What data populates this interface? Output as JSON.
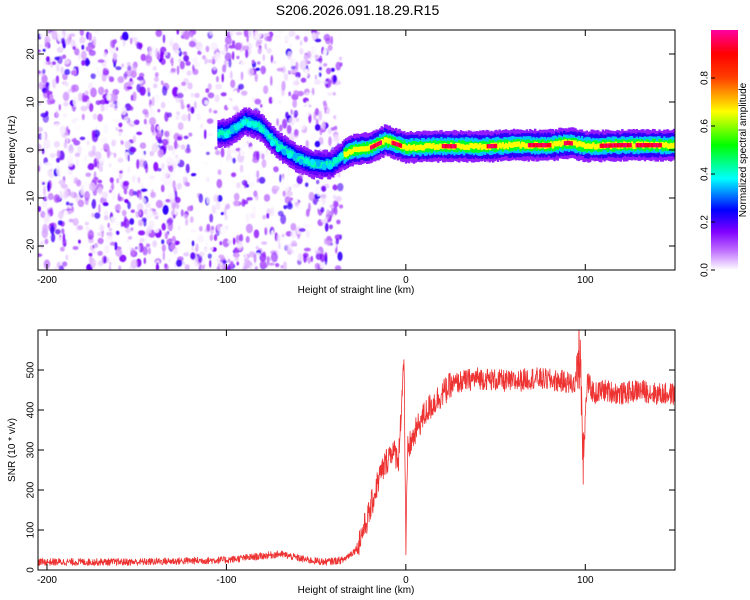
{
  "title": "S206.2026.091.18.29.R15",
  "chart_data": [
    {
      "type": "heatmap",
      "name": "spectrogram",
      "xlabel": "Height of straight line (km)",
      "ylabel": "Frequency (Hz)",
      "xlim": [
        -205,
        150
      ],
      "ylim": [
        -25,
        25
      ],
      "xticks": [
        -200,
        -100,
        0,
        100
      ],
      "yticks": [
        -20,
        -10,
        0,
        10,
        20
      ],
      "colorbar": {
        "label": "Normalized spectral amplitude",
        "range": [
          0,
          1
        ],
        "ticks": [
          "0.0",
          "0.2",
          "0.4",
          "0.6",
          "0.8"
        ],
        "colors": [
          "#ffffff",
          "#a400ff",
          "#0000ff",
          "#00ffff",
          "#00ff00",
          "#ffff00",
          "#ff0000",
          "#ff00a0"
        ]
      },
      "ridge": {
        "description": "peak frequency track",
        "x": [
          -100,
          -90,
          -82,
          -72,
          -62,
          -52,
          -42,
          -35,
          -30,
          -20,
          -12,
          -8,
          0,
          20,
          40,
          60,
          80,
          90,
          100,
          120,
          150
        ],
        "y": [
          3.5,
          6,
          5,
          1,
          -1.5,
          -3,
          -3,
          -1,
          0,
          0.5,
          2,
          1.5,
          0.5,
          0.8,
          0.7,
          1,
          1,
          1.5,
          0.8,
          1,
          1
        ]
      }
    },
    {
      "type": "line",
      "name": "snr",
      "xlabel": "Height of straight line (km)",
      "ylabel": "SNR (10 * v/v)",
      "xlim": [
        -205,
        150
      ],
      "ylim": [
        0,
        600
      ],
      "xticks": [
        -200,
        -100,
        0,
        100
      ],
      "yticks": [
        0,
        100,
        200,
        300,
        400,
        500
      ],
      "color": "#ee3333",
      "series": [
        {
          "name": "SNR",
          "x": [
            -205,
            -150,
            -100,
            -80,
            -70,
            -55,
            -45,
            -35,
            -28,
            -22,
            -18,
            -15,
            -12,
            -8,
            -4,
            -1,
            0,
            1,
            4,
            8,
            12,
            16,
            20,
            25,
            30,
            40,
            50,
            60,
            70,
            80,
            90,
            95,
            97,
            99,
            101,
            105,
            110,
            120,
            130,
            140,
            150
          ],
          "y": [
            20,
            20,
            25,
            35,
            40,
            25,
            20,
            25,
            50,
            120,
            180,
            230,
            260,
            300,
            280,
            540,
            30,
            300,
            330,
            370,
            400,
            420,
            440,
            460,
            470,
            480,
            475,
            470,
            480,
            475,
            470,
            460,
            580,
            280,
            470,
            440,
            450,
            440,
            450,
            440,
            440
          ]
        }
      ]
    }
  ]
}
